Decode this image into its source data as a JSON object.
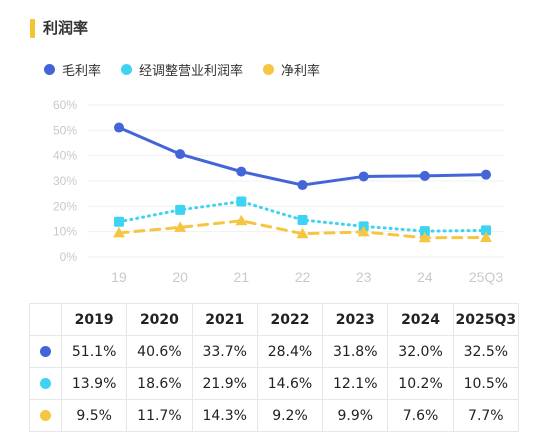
{
  "title": "利润率",
  "colors": {
    "accent": "#f4c431",
    "gross": "#4465d8",
    "adjusted": "#3ed3f2",
    "net": "#f6c542",
    "grid": "#eef0f3",
    "axis_text": "#c7c9cd"
  },
  "chart_data": {
    "type": "line",
    "title": "利润率",
    "xlabel": "",
    "ylabel": "",
    "categories": [
      "19",
      "20",
      "21",
      "22",
      "23",
      "24",
      "25Q3"
    ],
    "y_ticks": [
      "60%",
      "50%",
      "40%",
      "30%",
      "20%",
      "10%",
      "0%"
    ],
    "ylim": [
      0,
      60
    ],
    "grid": true,
    "legend_position": "top-left",
    "series": [
      {
        "name": "毛利率",
        "color": "#4465d8",
        "style": "solid",
        "marker": "circle",
        "values": [
          51.1,
          40.6,
          33.7,
          28.4,
          31.8,
          32.0,
          32.5
        ]
      },
      {
        "name": "经调整营业利润率",
        "color": "#3ed3f2",
        "style": "dotted",
        "marker": "square",
        "values": [
          13.9,
          18.6,
          21.9,
          14.6,
          12.1,
          10.2,
          10.5
        ]
      },
      {
        "name": "净利率",
        "color": "#f6c542",
        "style": "dashed",
        "marker": "triangle",
        "values": [
          9.5,
          11.7,
          14.3,
          9.2,
          9.9,
          7.6,
          7.7
        ]
      }
    ]
  },
  "table": {
    "headers": [
      "2019",
      "2020",
      "2021",
      "2022",
      "2023",
      "2024",
      "2025Q3"
    ],
    "rows": [
      {
        "color": "#4465d8",
        "cells": [
          "51.1%",
          "40.6%",
          "33.7%",
          "28.4%",
          "31.8%",
          "32.0%",
          "32.5%"
        ]
      },
      {
        "color": "#3ed3f2",
        "cells": [
          "13.9%",
          "18.6%",
          "21.9%",
          "14.6%",
          "12.1%",
          "10.2%",
          "10.5%"
        ]
      },
      {
        "color": "#f6c542",
        "cells": [
          "9.5%",
          "11.7%",
          "14.3%",
          "9.2%",
          "9.9%",
          "7.6%",
          "7.7%"
        ]
      }
    ]
  }
}
